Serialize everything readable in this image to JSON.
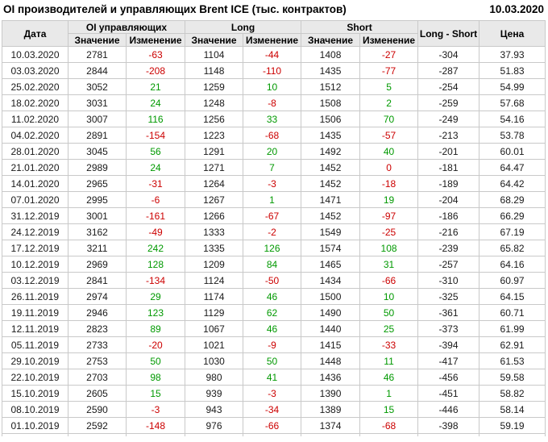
{
  "chart_data": {
    "type": "table",
    "title": "OI производителей и управляющих Brent ICE (тыс. контрактов)",
    "report_date": "10.03.2020",
    "header": {
      "date_col": "Дата",
      "groups": [
        {
          "label": "OI управляющих",
          "sub": [
            "Значение",
            "Изменение"
          ]
        },
        {
          "label": "Long",
          "sub": [
            "Значение",
            "Изменение"
          ]
        },
        {
          "label": "Short",
          "sub": [
            "Значение",
            "Изменение"
          ]
        }
      ],
      "long_short_col": "Long - Short",
      "price_col": "Цена"
    },
    "row_fields": [
      "date",
      "oi_value",
      "oi_change",
      "long_value",
      "long_change",
      "short_value",
      "short_change",
      "long_short",
      "price"
    ],
    "rows": [
      [
        "10.03.2020",
        2781,
        -63,
        1104,
        -44,
        1408,
        -27,
        -304,
        "37.93"
      ],
      [
        "03.03.2020",
        2844,
        -208,
        1148,
        -110,
        1435,
        -77,
        -287,
        "51.83"
      ],
      [
        "25.02.2020",
        3052,
        21,
        1259,
        10,
        1512,
        5,
        -254,
        "54.99"
      ],
      [
        "18.02.2020",
        3031,
        24,
        1248,
        -8,
        1508,
        2,
        -259,
        "57.68"
      ],
      [
        "11.02.2020",
        3007,
        116,
        1256,
        33,
        1506,
        70,
        -249,
        "54.16"
      ],
      [
        "04.02.2020",
        2891,
        -154,
        1223,
        -68,
        1435,
        -57,
        -213,
        "53.78"
      ],
      [
        "28.01.2020",
        3045,
        56,
        1291,
        20,
        1492,
        40,
        -201,
        "60.01"
      ],
      [
        "21.01.2020",
        2989,
        24,
        1271,
        7,
        1452,
        0,
        -181,
        "64.47"
      ],
      [
        "14.01.2020",
        2965,
        -31,
        1264,
        -3,
        1452,
        -18,
        -189,
        "64.42"
      ],
      [
        "07.01.2020",
        2995,
        -6,
        1267,
        1,
        1471,
        19,
        -204,
        "68.29"
      ],
      [
        "31.12.2019",
        3001,
        -161,
        1266,
        -67,
        1452,
        -97,
        -186,
        "66.29"
      ],
      [
        "24.12.2019",
        3162,
        -49,
        1333,
        -2,
        1549,
        -25,
        -216,
        "67.19"
      ],
      [
        "17.12.2019",
        3211,
        242,
        1335,
        126,
        1574,
        108,
        -239,
        "65.82"
      ],
      [
        "10.12.2019",
        2969,
        128,
        1209,
        84,
        1465,
        31,
        -257,
        "64.16"
      ],
      [
        "03.12.2019",
        2841,
        -134,
        1124,
        -50,
        1434,
        -66,
        -310,
        "60.97"
      ],
      [
        "26.11.2019",
        2974,
        29,
        1174,
        46,
        1500,
        10,
        -325,
        "64.15"
      ],
      [
        "19.11.2019",
        2946,
        123,
        1129,
        62,
        1490,
        50,
        -361,
        "60.71"
      ],
      [
        "12.11.2019",
        2823,
        89,
        1067,
        46,
        1440,
        25,
        -373,
        "61.99"
      ],
      [
        "05.11.2019",
        2733,
        -20,
        1021,
        -9,
        1415,
        -33,
        -394,
        "62.91"
      ],
      [
        "29.10.2019",
        2753,
        50,
        1030,
        50,
        1448,
        11,
        -417,
        "61.53"
      ],
      [
        "22.10.2019",
        2703,
        98,
        980,
        41,
        1436,
        46,
        -456,
        "59.58"
      ],
      [
        "15.10.2019",
        2605,
        15,
        939,
        -3,
        1390,
        1,
        -451,
        "58.82"
      ],
      [
        "08.10.2019",
        2590,
        -3,
        943,
        -34,
        1389,
        15,
        -446,
        "58.14"
      ],
      [
        "01.10.2019",
        2592,
        -148,
        976,
        -66,
        1374,
        -68,
        -398,
        "59.19"
      ]
    ],
    "colors": {
      "positive_change": "#009900",
      "negative_change": "#cc0000",
      "zero_change": "#cc0000",
      "header_bg": "#e9e9e9",
      "border": "#c9c9c9",
      "text": "#1a1a1a"
    },
    "layout_hints": {
      "change_columns_colored_by_sign": true,
      "zero_rendered_as_negative_color": true,
      "all_cells_centered": true
    }
  }
}
